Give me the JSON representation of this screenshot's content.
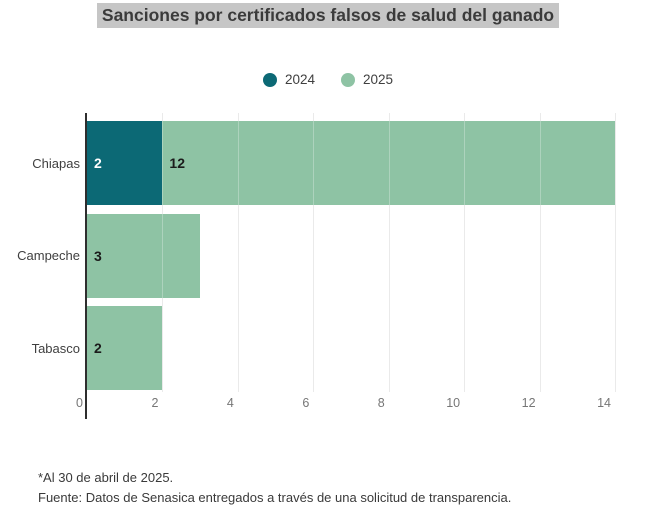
{
  "title": "Sanciones por certificados falsos de salud del ganado",
  "legend": {
    "items": [
      {
        "label": "2024",
        "color": "#0c6975"
      },
      {
        "label": "2025",
        "color": "#8ec3a4"
      }
    ]
  },
  "chart_data": {
    "type": "bar",
    "orientation": "horizontal",
    "stacked": true,
    "title": "Sanciones por certificados falsos de salud del ganado",
    "categories": [
      "Chiapas",
      "Campeche",
      "Tabasco"
    ],
    "series": [
      {
        "name": "2024",
        "color": "#0c6975",
        "value_label_color": "#ffffff",
        "values": [
          2,
          0,
          0
        ]
      },
      {
        "name": "2025",
        "color": "#8ec3a4",
        "value_label_color": "#1b1b1b",
        "values": [
          12,
          3,
          2
        ]
      }
    ],
    "xlim": [
      0,
      14
    ],
    "xticks": [
      "0",
      "2",
      "4",
      "6",
      "8",
      "10",
      "12",
      "14"
    ],
    "grid": true,
    "legend_position": "top-center",
    "value_labels": true
  },
  "footnote": "*Al 30 de abril de 2025.",
  "source": "Fuente: Datos de Senasica entregados a través de una solicitud de transparencia.",
  "colors": {
    "title_highlight": "#c6c6c6",
    "axis_line": "#2e2e2e",
    "grid_line": "#e2e2e2",
    "tick_label": "#767676",
    "category_label": "#3f3f3f"
  }
}
